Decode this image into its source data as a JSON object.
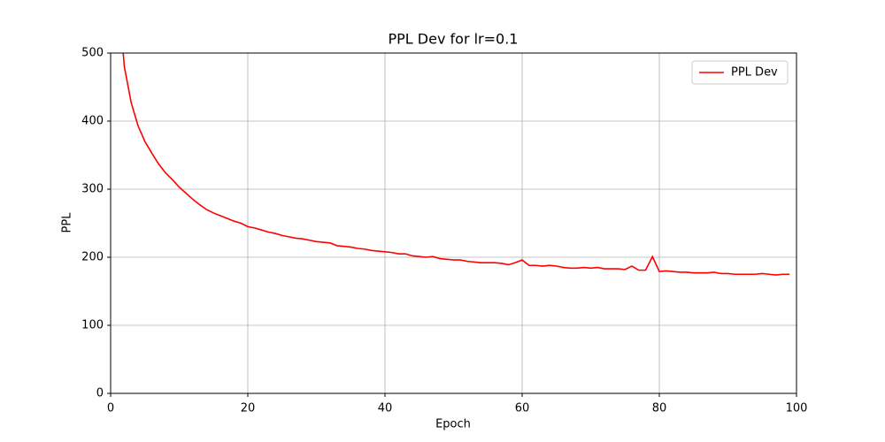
{
  "chart_data": {
    "type": "line",
    "title": "PPL Dev for lr=0.1",
    "x_label": "Epoch",
    "y_label": "PPL",
    "x": [
      1,
      2,
      3,
      4,
      5,
      6,
      7,
      8,
      9,
      10,
      11,
      12,
      13,
      14,
      15,
      16,
      17,
      18,
      19,
      20,
      21,
      22,
      23,
      24,
      25,
      26,
      27,
      28,
      29,
      30,
      31,
      32,
      33,
      34,
      35,
      36,
      37,
      38,
      39,
      40,
      41,
      42,
      43,
      44,
      45,
      46,
      47,
      48,
      49,
      50,
      51,
      52,
      53,
      54,
      55,
      56,
      57,
      58,
      59,
      60,
      61,
      62,
      63,
      64,
      65,
      66,
      67,
      68,
      69,
      70,
      71,
      72,
      73,
      74,
      75,
      76,
      77,
      78,
      79,
      80,
      81,
      82,
      83,
      84,
      85,
      86,
      87,
      88,
      89,
      90,
      91,
      92,
      93,
      94,
      95,
      96,
      97,
      98,
      99
    ],
    "series": [
      {
        "name": "PPL Dev",
        "color": "#ff0000",
        "values": [
          600,
          480,
          427,
          393,
          370,
          353,
          337,
          324,
          314,
          303,
          294,
          285,
          277,
          270,
          265,
          261,
          257,
          253,
          250,
          245,
          243,
          240,
          237,
          235,
          232,
          230,
          228,
          227,
          225,
          223,
          222,
          221,
          217,
          216,
          215,
          213,
          212,
          210,
          209,
          208,
          207,
          205,
          205,
          202,
          201,
          200,
          201,
          198,
          197,
          196,
          196,
          194,
          193,
          192,
          192,
          192,
          191,
          189,
          192,
          196,
          188,
          188,
          187,
          188,
          187,
          185,
          184,
          184,
          185,
          184,
          185,
          183,
          183,
          183,
          182,
          187,
          181,
          181,
          201,
          179,
          180,
          179,
          178,
          178,
          177,
          177,
          177,
          178,
          176,
          176,
          175,
          175,
          175,
          175,
          176,
          175,
          174,
          175,
          175
        ]
      }
    ],
    "xlim": [
      0,
      100
    ],
    "xticks": [
      0,
      20,
      40,
      60,
      80,
      100
    ],
    "ylim": [
      0,
      500
    ],
    "yticks": [
      0,
      100,
      200,
      300,
      400,
      500
    ],
    "grid": true,
    "legend": "upper right"
  }
}
